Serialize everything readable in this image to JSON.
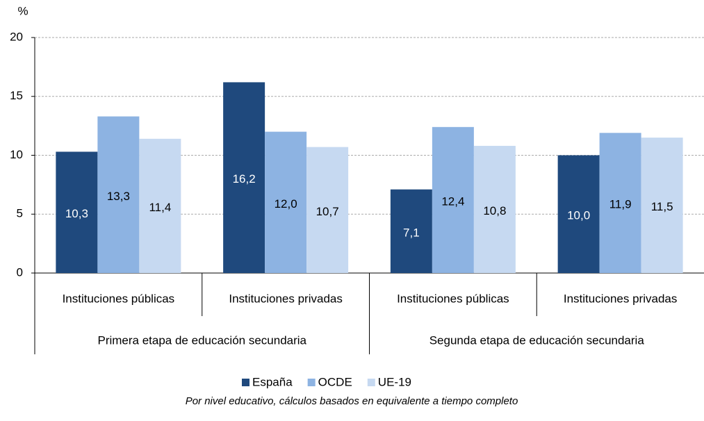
{
  "chart_data": {
    "type": "bar",
    "y_label": "%",
    "categories": [
      "Instituciones públicas",
      "Instituciones privadas",
      "Instituciones públicas",
      "Instituciones privadas"
    ],
    "groups": [
      "Primera etapa de educación secundaria",
      "Segunda etapa de educación secundaria"
    ],
    "series": [
      {
        "name": "España",
        "color": "#1f497d",
        "label_color": "#ffffff",
        "values": [
          10.3,
          16.2,
          7.1,
          10.0
        ],
        "value_labels": [
          "10,3",
          "16,2",
          "7,1",
          "10,0"
        ]
      },
      {
        "name": "OCDE",
        "color": "#8db3e2",
        "label_color": "#000000",
        "values": [
          13.3,
          12.0,
          12.4,
          11.9
        ],
        "value_labels": [
          "13,3",
          "12,0",
          "12,4",
          "11,9"
        ]
      },
      {
        "name": "UE-19",
        "color": "#c6d9f1",
        "label_color": "#000000",
        "values": [
          11.4,
          10.7,
          10.8,
          11.5
        ],
        "value_labels": [
          "11,4",
          "10,7",
          "10,8",
          "11,5"
        ]
      }
    ],
    "ylim": [
      0,
      20
    ],
    "yticks": [
      0,
      5,
      10,
      15,
      20
    ],
    "grid": true,
    "subtitle": "Por nivel educativo, cálculos basados en equivalente a tiempo completo"
  }
}
